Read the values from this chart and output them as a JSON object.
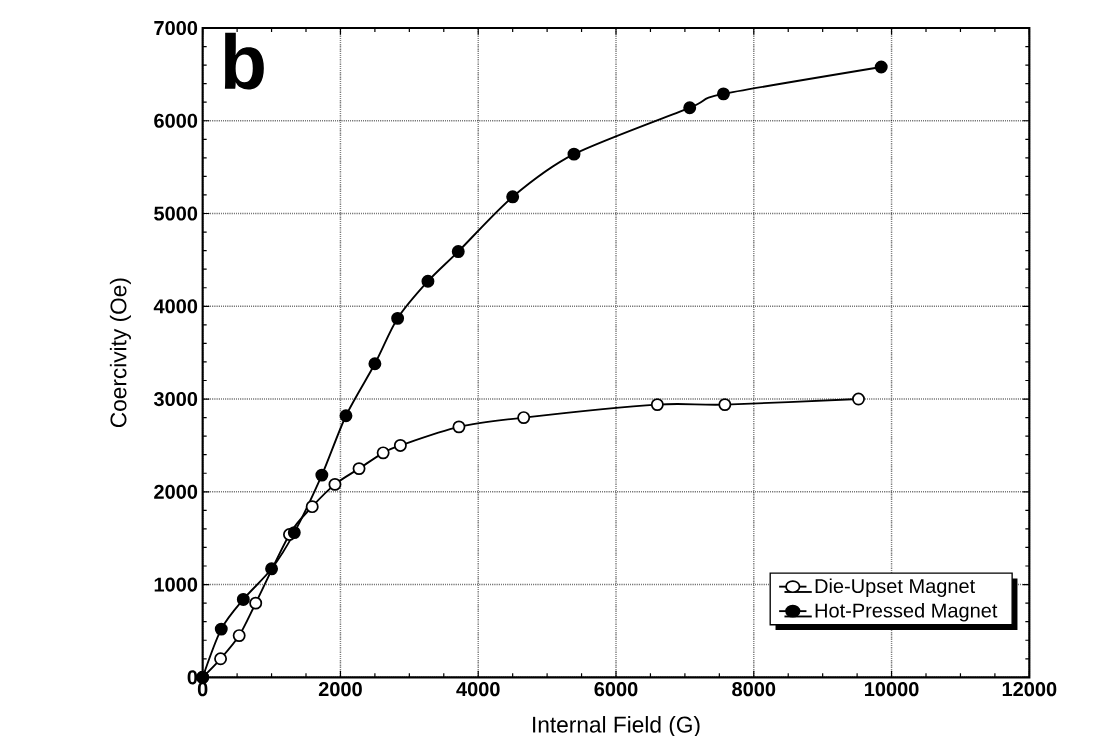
{
  "chart_data": {
    "type": "line",
    "xlabel": "Internal Field (G)",
    "ylabel": "Coercivity (Oe)",
    "annotations": [
      "b"
    ],
    "xlim": [
      0,
      12000
    ],
    "ylim": [
      0,
      7000
    ],
    "xticks": [
      0,
      2000,
      4000,
      6000,
      8000,
      10000,
      12000
    ],
    "yticks": [
      0,
      1000,
      2000,
      3000,
      4000,
      5000,
      6000,
      7000
    ],
    "grid": true,
    "legend": "bottom right",
    "marker": "circle",
    "line_style": "solid",
    "series": [
      {
        "name": "Die-Upset Magnet",
        "color": "#000000",
        "x": [
          0,
          260,
          530,
          770,
          1260,
          1590,
          1920,
          2270,
          2620,
          2870,
          3720,
          4660,
          6600,
          7580,
          9520
        ],
        "values": [
          0,
          200,
          450,
          800,
          1540,
          1840,
          2080,
          2250,
          2420,
          2500,
          2700,
          2800,
          2940,
          2940,
          3000
        ]
      },
      {
        "name": "Hot-Pressed Magnet",
        "color": "#000000",
        "x": [
          0,
          270,
          590,
          1000,
          1330,
          1730,
          2080,
          2500,
          2830,
          3270,
          3710,
          4500,
          5390,
          7070,
          7560,
          9850
        ],
        "values": [
          0,
          520,
          840,
          1170,
          1560,
          2180,
          2820,
          3380,
          3870,
          4270,
          4590,
          5180,
          5640,
          6140,
          6290,
          6580
        ]
      }
    ]
  }
}
